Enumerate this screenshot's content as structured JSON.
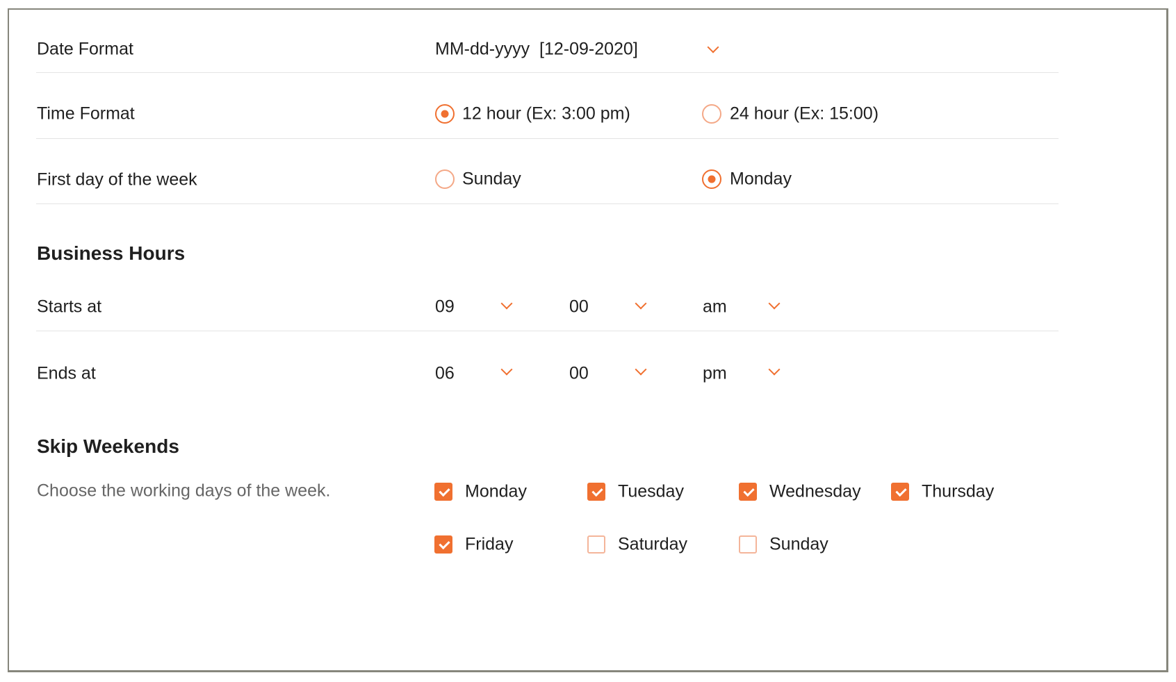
{
  "date_format": {
    "label": "Date Format",
    "value": "MM-dd-yyyy  [12-09-2020]"
  },
  "time_format": {
    "label": "Time Format",
    "options": [
      {
        "label": "12 hour (Ex: 3:00 pm)",
        "selected": true
      },
      {
        "label": "24 hour (Ex: 15:00)",
        "selected": false
      }
    ]
  },
  "first_day": {
    "label": "First day of the week",
    "options": [
      {
        "label": "Sunday",
        "selected": false
      },
      {
        "label": "Monday",
        "selected": true
      }
    ]
  },
  "business_hours": {
    "title": "Business Hours",
    "starts": {
      "label": "Starts at",
      "hour": "09",
      "minute": "00",
      "period": "am"
    },
    "ends": {
      "label": "Ends at",
      "hour": "06",
      "minute": "00",
      "period": "pm"
    }
  },
  "skip_weekends": {
    "title": "Skip Weekends",
    "description": "Choose the working days of the week.",
    "days": [
      {
        "label": "Monday",
        "checked": true
      },
      {
        "label": "Tuesday",
        "checked": true
      },
      {
        "label": "Wednesday",
        "checked": true
      },
      {
        "label": "Thursday",
        "checked": true
      },
      {
        "label": "Friday",
        "checked": true
      },
      {
        "label": "Saturday",
        "checked": false
      },
      {
        "label": "Sunday",
        "checked": false
      }
    ]
  },
  "accent_color": "#f07030"
}
